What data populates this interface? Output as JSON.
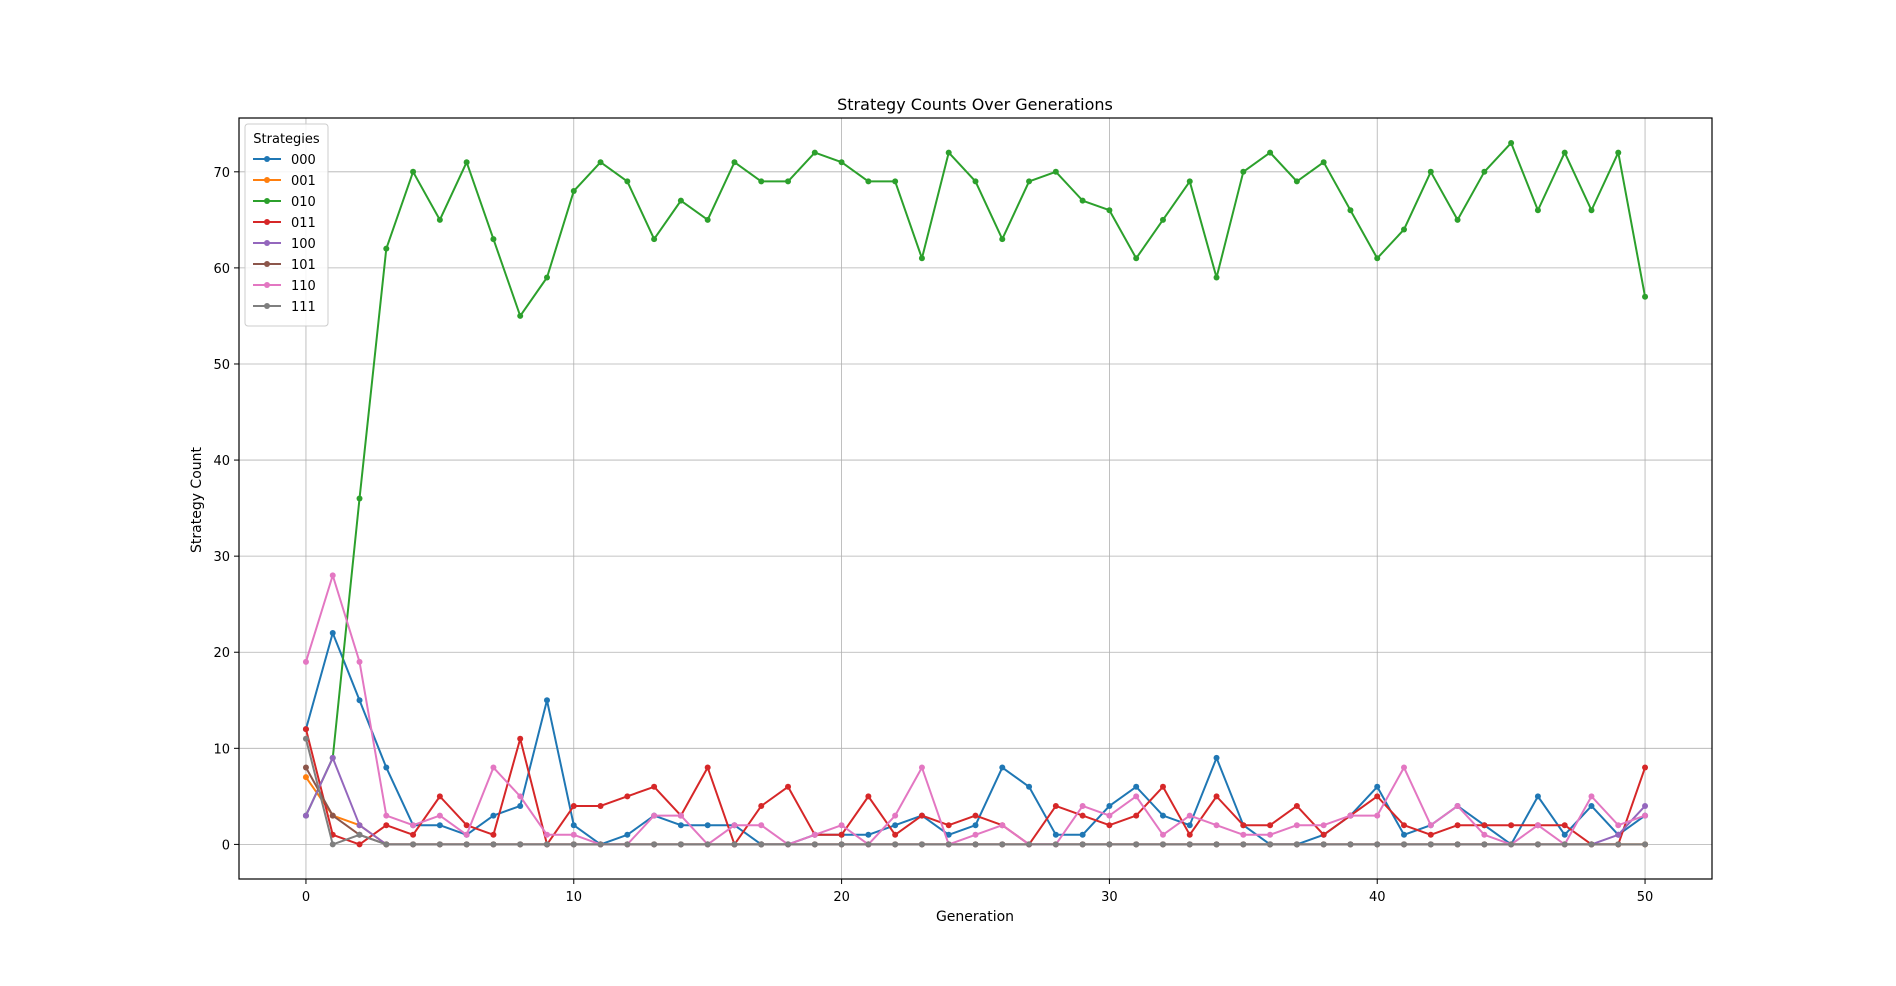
{
  "chart_data": {
    "type": "line",
    "title": "Strategy Counts Over Generations",
    "xlabel": "Generation",
    "ylabel": "Strategy Count",
    "xlim": [
      -2.5,
      52.5
    ],
    "ylim": [
      -3.6,
      75.6
    ],
    "xticks": [
      0,
      10,
      20,
      30,
      40,
      50
    ],
    "yticks": [
      0,
      10,
      20,
      30,
      40,
      50,
      60,
      70
    ],
    "grid": true,
    "legend": {
      "title": "Strategies",
      "placement": "top-left"
    },
    "x": [
      0,
      1,
      2,
      3,
      4,
      5,
      6,
      7,
      8,
      9,
      10,
      11,
      12,
      13,
      14,
      15,
      16,
      17,
      18,
      19,
      20,
      21,
      22,
      23,
      24,
      25,
      26,
      27,
      28,
      29,
      30,
      31,
      32,
      33,
      34,
      35,
      36,
      37,
      38,
      39,
      40,
      41,
      42,
      43,
      44,
      45,
      46,
      47,
      48,
      49,
      50
    ],
    "series": [
      {
        "name": "000",
        "color": "#1f77b4",
        "values": [
          12,
          22,
          15,
          8,
          2,
          2,
          1,
          3,
          4,
          15,
          2,
          0,
          1,
          3,
          2,
          2,
          2,
          0,
          0,
          1,
          1,
          1,
          2,
          3,
          1,
          2,
          8,
          6,
          1,
          1,
          4,
          6,
          3,
          2,
          9,
          2,
          0,
          0,
          1,
          3,
          6,
          1,
          2,
          4,
          2,
          0,
          5,
          1,
          4,
          1,
          3
        ]
      },
      {
        "name": "001",
        "color": "#ff7f0e",
        "values": [
          7,
          3,
          2,
          0,
          0,
          0,
          0,
          0,
          0,
          0,
          0,
          0,
          0,
          0,
          0,
          0,
          0,
          0,
          0,
          0,
          0,
          0,
          0,
          0,
          0,
          0,
          0,
          0,
          0,
          0,
          0,
          0,
          0,
          0,
          0,
          0,
          0,
          0,
          0,
          0,
          0,
          0,
          0,
          0,
          0,
          0,
          0,
          0,
          0,
          0,
          0
        ]
      },
      {
        "name": "010",
        "color": "#2ca02c",
        "values": [
          3,
          9,
          36,
          62,
          70,
          65,
          71,
          63,
          55,
          59,
          68,
          71,
          69,
          63,
          67,
          65,
          71,
          69,
          69,
          72,
          71,
          69,
          69,
          61,
          72,
          69,
          63,
          69,
          70,
          67,
          66,
          61,
          65,
          69,
          59,
          70,
          72,
          69,
          71,
          66,
          61,
          64,
          70,
          65,
          70,
          73,
          66,
          72,
          66,
          72,
          57
        ]
      },
      {
        "name": "011",
        "color": "#d62728",
        "values": [
          12,
          1,
          0,
          2,
          1,
          5,
          2,
          1,
          11,
          0,
          4,
          4,
          5,
          6,
          3,
          8,
          0,
          4,
          6,
          1,
          1,
          5,
          1,
          3,
          2,
          3,
          2,
          0,
          4,
          3,
          2,
          3,
          6,
          1,
          5,
          2,
          2,
          4,
          1,
          3,
          5,
          2,
          1,
          2,
          2,
          2,
          2,
          2,
          0,
          0,
          8
        ]
      },
      {
        "name": "100",
        "color": "#9467bd",
        "values": [
          3,
          9,
          2,
          0,
          0,
          0,
          0,
          0,
          0,
          0,
          0,
          0,
          0,
          0,
          0,
          0,
          0,
          0,
          0,
          0,
          0,
          0,
          0,
          0,
          0,
          0,
          0,
          0,
          0,
          0,
          0,
          0,
          0,
          0,
          0,
          0,
          0,
          0,
          0,
          0,
          0,
          0,
          0,
          0,
          0,
          0,
          0,
          0,
          0,
          1,
          4
        ]
      },
      {
        "name": "101",
        "color": "#8c564b",
        "values": [
          8,
          3,
          1,
          0,
          0,
          0,
          0,
          0,
          0,
          0,
          0,
          0,
          0,
          0,
          0,
          0,
          0,
          0,
          0,
          0,
          0,
          0,
          0,
          0,
          0,
          0,
          0,
          0,
          0,
          0,
          0,
          0,
          0,
          0,
          0,
          0,
          0,
          0,
          0,
          0,
          0,
          0,
          0,
          0,
          0,
          0,
          0,
          0,
          0,
          0,
          0
        ]
      },
      {
        "name": "110",
        "color": "#e377c2",
        "values": [
          19,
          28,
          19,
          3,
          2,
          3,
          1,
          8,
          5,
          1,
          1,
          0,
          0,
          3,
          3,
          0,
          2,
          2,
          0,
          1,
          2,
          0,
          3,
          8,
          0,
          1,
          2,
          0,
          0,
          4,
          3,
          5,
          1,
          3,
          2,
          1,
          1,
          2,
          2,
          3,
          3,
          8,
          2,
          4,
          1,
          0,
          2,
          0,
          5,
          2,
          3
        ]
      },
      {
        "name": "111",
        "color": "#7f7f7f",
        "values": [
          11,
          0,
          1,
          0,
          0,
          0,
          0,
          0,
          0,
          0,
          0,
          0,
          0,
          0,
          0,
          0,
          0,
          0,
          0,
          0,
          0,
          0,
          0,
          0,
          0,
          0,
          0,
          0,
          0,
          0,
          0,
          0,
          0,
          0,
          0,
          0,
          0,
          0,
          0,
          0,
          0,
          0,
          0,
          0,
          0,
          0,
          0,
          0,
          0,
          0,
          0
        ]
      }
    ]
  }
}
